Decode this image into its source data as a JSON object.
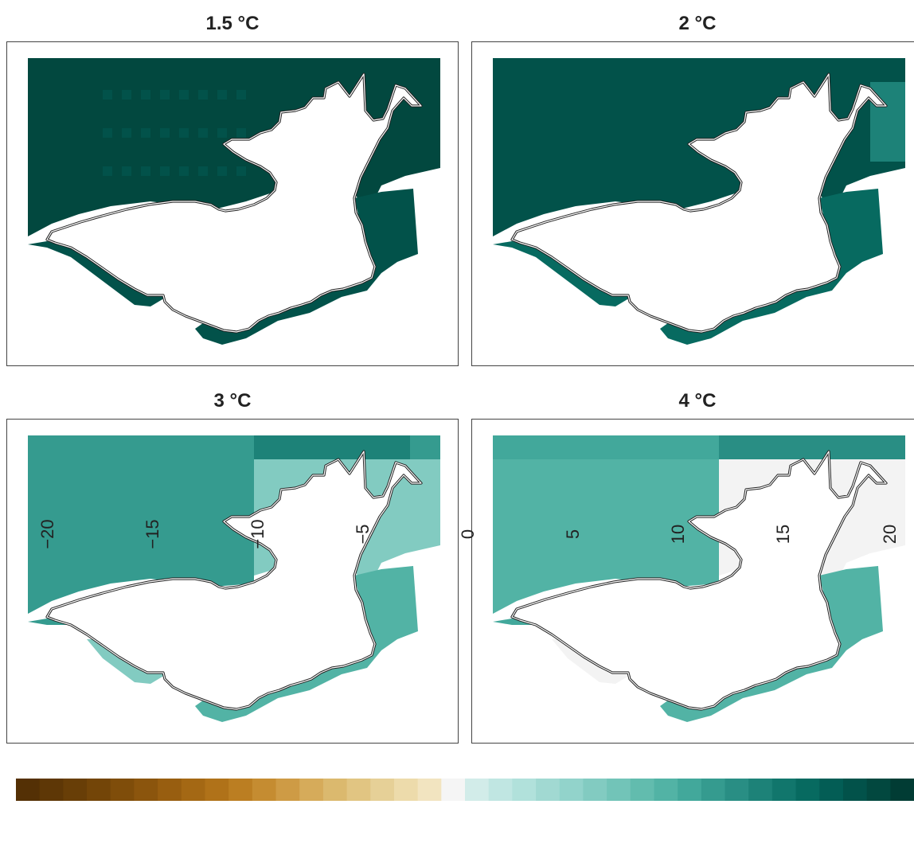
{
  "panels": [
    {
      "title": "1.5 °C"
    },
    {
      "title": "2 °C"
    },
    {
      "title": "3 °C"
    },
    {
      "title": "4 °C"
    }
  ],
  "colorbar": {
    "ticks": [
      "−20",
      "−15",
      "−10",
      "−5",
      "0",
      "5",
      "10",
      "15",
      "20"
    ],
    "colors": [
      "#543005",
      "#5e3706",
      "#683e07",
      "#734508",
      "#7f4d0a",
      "#8b550d",
      "#985e10",
      "#a46814",
      "#b07219",
      "#bb7e22",
      "#c58c31",
      "#ce9b45",
      "#d6ab5a",
      "#dbb96e",
      "#e1c582",
      "#e6d097",
      "#eddbab",
      "#f2e4c0",
      "#f5f5f5",
      "#d2ece9",
      "#c0e6e2",
      "#b1e1db",
      "#a1d9d2",
      "#92d3cb",
      "#82cbc1",
      "#72c4b8",
      "#62bcae",
      "#52b3a5",
      "#42a89b",
      "#359b8f",
      "#298e84",
      "#1d8278",
      "#11766c",
      "#076a60",
      "#035d55",
      "#02524a",
      "#02483f",
      "#013c34"
    ]
  },
  "fill_levels": {
    "1.5 °C": [
      18,
      17
    ],
    "2 °C": [
      17,
      15,
      13
    ],
    "3 °C": [
      13,
      11,
      9,
      6
    ],
    "4 °C": [
      10,
      9,
      0
    ]
  }
}
